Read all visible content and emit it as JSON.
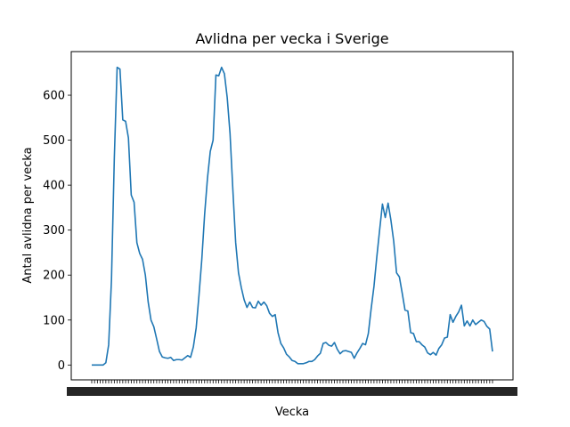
{
  "chart_data": {
    "type": "line",
    "title": "Avlidna per vecka i Sverige",
    "xlabel": "Vecka",
    "ylabel": "Antal avlidna per vecka",
    "grid": false,
    "legend": "none",
    "ylim": [
      -33,
      697
    ],
    "yticks": [
      0,
      100,
      200,
      300,
      400,
      500,
      600
    ],
    "series": [
      {
        "color": "#1f77b4",
        "values": [
          0,
          0,
          0,
          0,
          0,
          5,
          45,
          190,
          460,
          662,
          658,
          545,
          542,
          505,
          378,
          362,
          272,
          248,
          235,
          200,
          140,
          100,
          85,
          58,
          30,
          18,
          16,
          15,
          17,
          10,
          12,
          12,
          11,
          16,
          21,
          17,
          40,
          82,
          155,
          235,
          335,
          415,
          475,
          500,
          645,
          643,
          662,
          648,
          595,
          515,
          390,
          272,
          205,
          172,
          145,
          128,
          140,
          128,
          127,
          142,
          133,
          140,
          132,
          115,
          108,
          112,
          72,
          48,
          38,
          24,
          18,
          10,
          8,
          3,
          3,
          3,
          5,
          8,
          8,
          12,
          20,
          26,
          48,
          50,
          44,
          42,
          50,
          35,
          25,
          31,
          32,
          30,
          28,
          15,
          27,
          37,
          48,
          45,
          70,
          125,
          175,
          240,
          300,
          358,
          328,
          360,
          322,
          275,
          205,
          196,
          160,
          122,
          120,
          72,
          70,
          52,
          52,
          45,
          40,
          27,
          23,
          28,
          22,
          37,
          45,
          60,
          62,
          112,
          95,
          108,
          118,
          133,
          87,
          98,
          87,
          100,
          90,
          95,
          100,
          97,
          86,
          80,
          30
        ]
      }
    ]
  }
}
